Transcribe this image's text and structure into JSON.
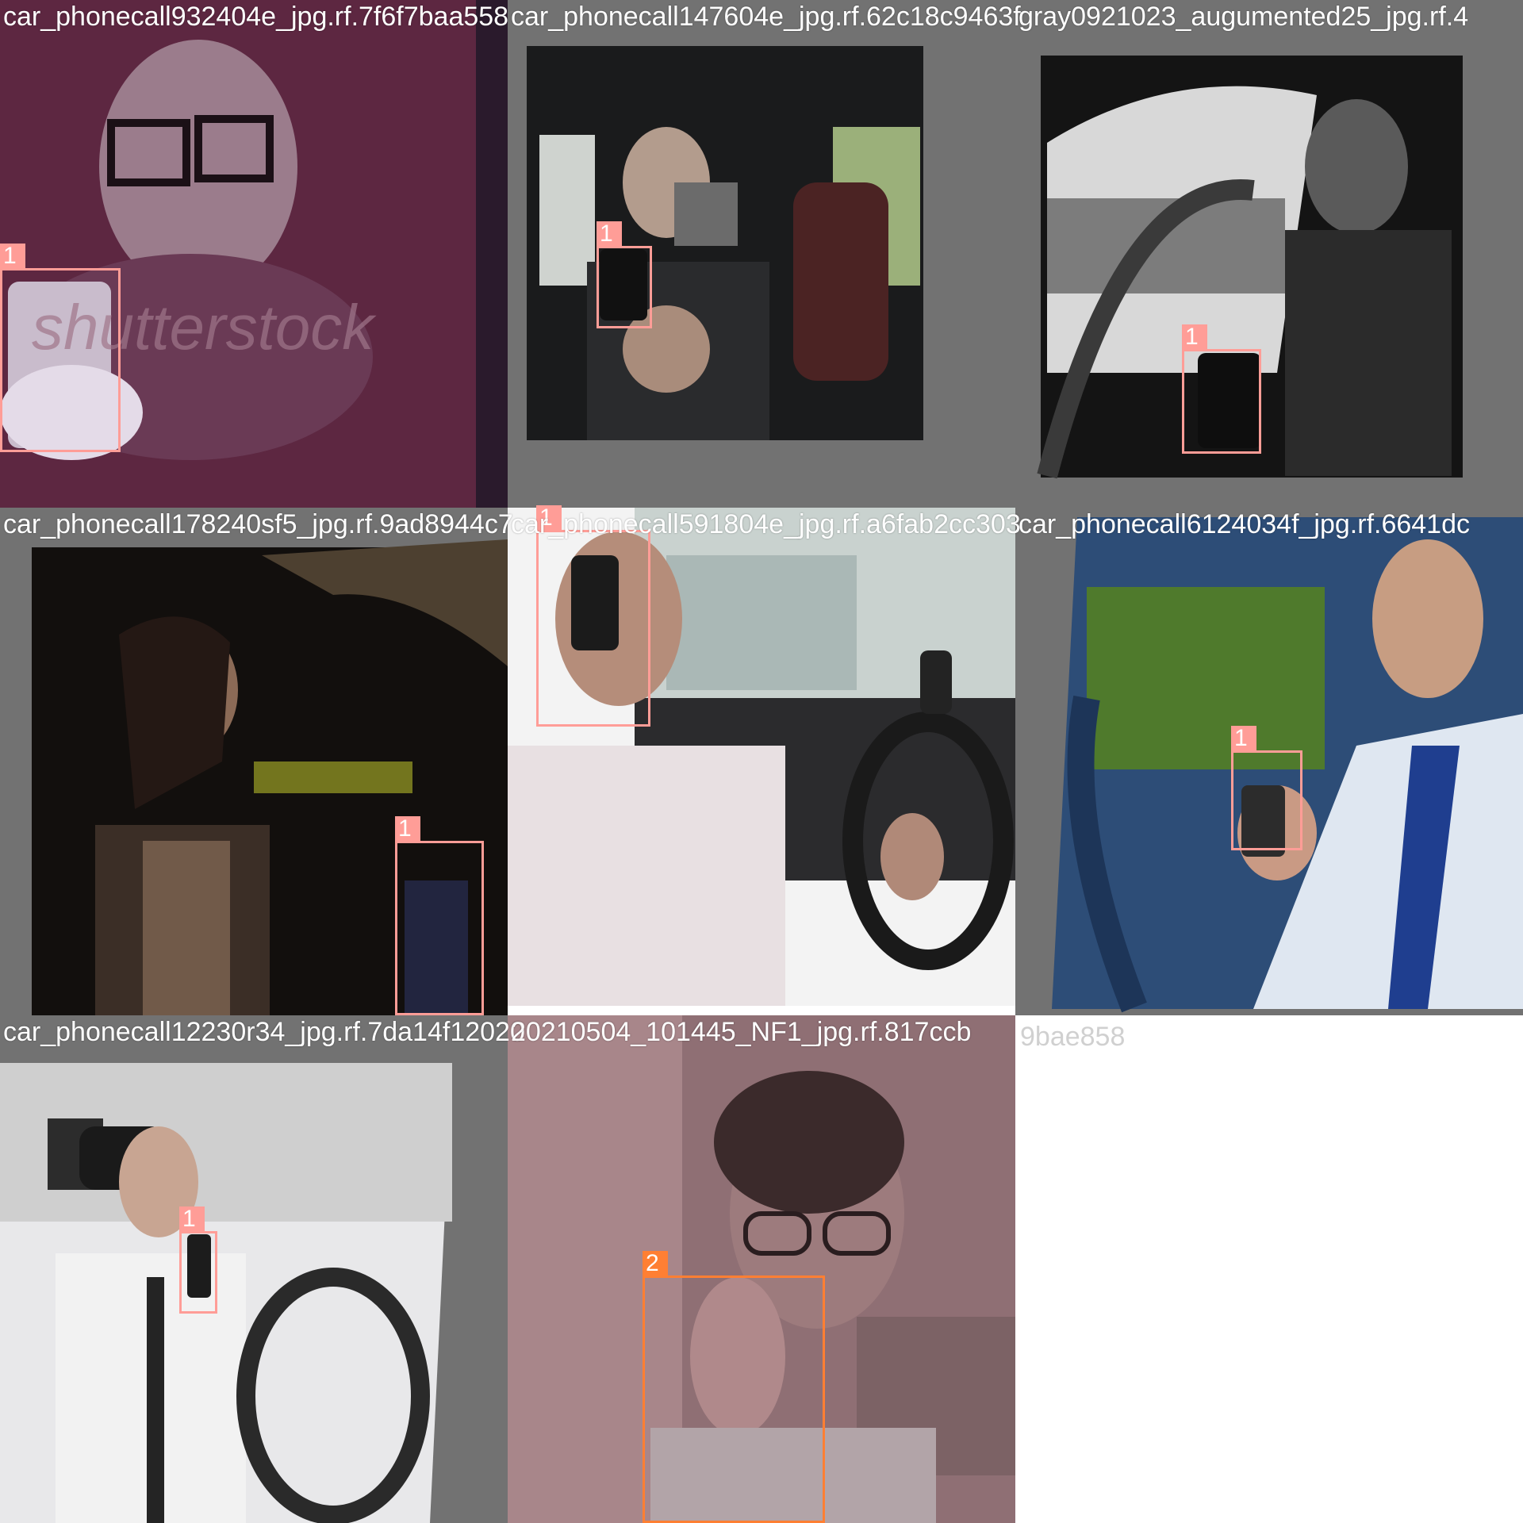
{
  "colors": {
    "class1": "#ff9d97",
    "class2": "#ff7f33",
    "pad": "#727272"
  },
  "tiles": [
    {
      "caption": "car_phonecall932404e_jpg.rf.7f6f7baa558",
      "label": "1"
    },
    {
      "caption": "car_phonecall147604e_jpg.rf.62c18c9463f",
      "label": "1"
    },
    {
      "caption": "gray0921023_augumented25_jpg.rf.4",
      "label": "1"
    },
    {
      "caption": "car_phonecall178240sf5_jpg.rf.9ad8944c7",
      "label": "1"
    },
    {
      "caption": "car_phonecall591804e_jpg.rf.a6fab2cc303",
      "label": "1"
    },
    {
      "caption": "car_phonecall6124034f_jpg.rf.6641dc",
      "label": "1"
    },
    {
      "caption": "car_phonecall12230r34_jpg.rf.7da14f12020",
      "label": "1"
    },
    {
      "caption": "20210504_101445_NF1_jpg.rf.817ccb",
      "label": "2"
    }
  ],
  "overflow_caption": "9bae858"
}
